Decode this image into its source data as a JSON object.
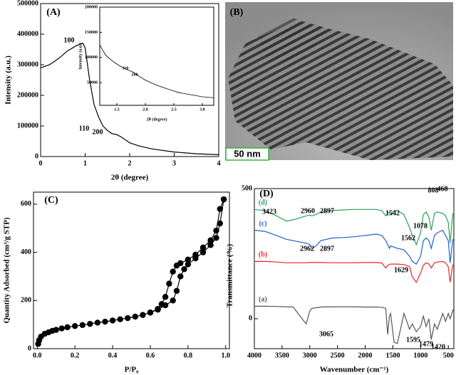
{
  "chart_data": [
    {
      "type": "line",
      "panel_label": "(A)",
      "x_label": "2θ (degree)",
      "y_label": "Intensity (a.u.)",
      "color": "#000000",
      "x": [
        0,
        0.2,
        0.4,
        0.6,
        0.8,
        0.9,
        0.95,
        1.0,
        1.1,
        1.2,
        1.3,
        1.4,
        1.5,
        1.6,
        1.7,
        1.8,
        1.9,
        2.0,
        2.2,
        2.5,
        3.0,
        3.5,
        4.0
      ],
      "values": [
        290000,
        300000,
        320000,
        345000,
        362000,
        368000,
        370000,
        355000,
        250000,
        170000,
        130000,
        100000,
        85000,
        75000,
        72000,
        65000,
        55000,
        45000,
        35000,
        25000,
        15000,
        9000,
        6000
      ],
      "xlim": [
        0,
        4
      ],
      "ylim": [
        0,
        500000
      ],
      "xticks": [
        0,
        1,
        2,
        3,
        4
      ],
      "yticks": [
        0,
        100000,
        200000,
        300000,
        400000,
        500000
      ],
      "annotations": [
        "100",
        "110",
        "200"
      ]
    },
    {
      "type": "line",
      "x_label": "2θ (degree)",
      "y_label": "Intensity (a.u.)",
      "color": "#000000",
      "x": [
        1.2,
        1.3,
        1.4,
        1.5,
        1.6,
        1.7,
        1.8,
        1.9,
        2.0,
        2.2,
        2.4,
        2.6,
        2.8,
        3.0,
        3.2
      ],
      "values": [
        125000,
        105000,
        95000,
        87000,
        80000,
        75000,
        70000,
        62000,
        55000,
        45000,
        37000,
        30000,
        26000,
        22000,
        20000
      ],
      "xlim": [
        1.2,
        3.2
      ],
      "ylim": [
        5000,
        200000
      ],
      "xticks": [
        1.5,
        {
          "value": 2,
          "label": "2.0"
        },
        2.5,
        {
          "value": 3,
          "label": "3.0"
        }
      ],
      "yticks": [
        50000,
        100000,
        150000,
        200000
      ],
      "annotations": [
        "110",
        "200"
      ]
    },
    {
      "type": "image",
      "panel_label": "(B)",
      "scale_bar": "50 nm"
    },
    {
      "type": "line",
      "panel_label": "(C)",
      "x_label": "P/P₀",
      "y_label": "Quantity Adsorbed (cm³/g STP)",
      "xlim": [
        -0.02,
        1.02
      ],
      "ylim": [
        0,
        650
      ],
      "xticks": [
        {
          "value": 0,
          "label": "0.0"
        },
        0.2,
        0.4,
        0.6,
        0.8,
        {
          "value": 1,
          "label": "1.0"
        }
      ],
      "yticks": [
        0,
        200,
        400,
        600
      ],
      "series": [
        {
          "color": "#000000",
          "x": [
            0.005,
            0.01,
            0.02,
            0.04,
            0.06,
            0.08,
            0.1,
            0.13,
            0.16,
            0.2,
            0.24,
            0.28,
            0.32,
            0.36,
            0.4,
            0.44,
            0.48,
            0.52,
            0.56,
            0.6,
            0.64,
            0.68,
            0.72,
            0.74,
            0.76,
            0.78,
            0.8,
            0.84,
            0.88,
            0.92,
            0.95,
            0.97,
            0.99
          ],
          "values": [
            20,
            35,
            50,
            62,
            68,
            74,
            78,
            84,
            89,
            94,
            98,
            103,
            108,
            112,
            117,
            122,
            127,
            133,
            140,
            150,
            162,
            180,
            200,
            240,
            300,
            330,
            350,
            375,
            400,
            430,
            460,
            520,
            620
          ]
        },
        {
          "color": "#000000",
          "x": [
            0.99,
            0.97,
            0.95,
            0.92,
            0.88,
            0.84,
            0.8,
            0.76,
            0.74,
            0.72,
            0.7,
            0.68,
            0.66,
            0.64,
            0.6
          ],
          "values": [
            620,
            580,
            490,
            450,
            420,
            390,
            370,
            355,
            345,
            320,
            270,
            215,
            185,
            165,
            150
          ]
        }
      ]
    },
    {
      "type": "line",
      "panel_label": "(D)",
      "x_label": "Wavenumber (cm⁻¹)",
      "y_label": "Transmittance (%)",
      "xlim": [
        4000,
        400
      ],
      "ylim": [
        -115,
        500
      ],
      "xticks": [
        4000,
        3500,
        3000,
        2500,
        2000,
        1500,
        1000,
        500
      ],
      "yticks": [
        0,
        500
      ],
      "x": [
        4000,
        3800,
        3600,
        3423,
        3300,
        3065,
        3000,
        2962,
        2897,
        2800,
        2600,
        2400,
        2200,
        2000,
        1800,
        1700,
        1629,
        1595,
        1562,
        1542,
        1479,
        1420,
        1300,
        1200,
        1150,
        1078,
        1000,
        950,
        900,
        850,
        808,
        750,
        700,
        600,
        550,
        500,
        468,
        420,
        400
      ],
      "series": [
        {
          "name": "(a)",
          "color": "#555555",
          "values": [
            48,
            48,
            47,
            46,
            45,
            -20,
            30,
            40,
            42,
            45,
            46,
            46,
            46,
            45,
            45,
            44,
            40,
            -60,
            10,
            20,
            -90,
            -95,
            20,
            -40,
            -20,
            -50,
            -30,
            10,
            -30,
            0,
            -80,
            -20,
            -40,
            20,
            -10,
            20,
            0,
            30,
            40
          ]
        },
        {
          "name": "(b)",
          "color": "#e8262b",
          "values": [
            220,
            220,
            218,
            215,
            215,
            215,
            216,
            216,
            216,
            216,
            215,
            215,
            215,
            216,
            216,
            214,
            195,
            205,
            208,
            210,
            210,
            210,
            208,
            200,
            160,
            140,
            175,
            205,
            215,
            210,
            195,
            215,
            218,
            220,
            215,
            200,
            140,
            205,
            210
          ]
        },
        {
          "name": "(c)",
          "color": "#1f5fd0",
          "values": [
            340,
            335,
            320,
            305,
            300,
            290,
            285,
            270,
            278,
            300,
            310,
            312,
            315,
            320,
            325,
            320,
            300,
            285,
            270,
            280,
            275,
            270,
            265,
            240,
            220,
            210,
            240,
            300,
            310,
            300,
            270,
            320,
            330,
            340,
            320,
            300,
            215,
            300,
            310
          ]
        },
        {
          "name": "(d)",
          "color": "#2ca05a",
          "values": [
            420,
            415,
            395,
            375,
            380,
            395,
            398,
            395,
            400,
            410,
            415,
            418,
            420,
            420,
            420,
            415,
            395,
            405,
            410,
            400,
            415,
            415,
            400,
            350,
            320,
            285,
            330,
            400,
            410,
            390,
            340,
            405,
            410,
            405,
            395,
            370,
            290,
            400,
            410
          ]
        }
      ],
      "annotations": [
        "3423",
        "2960",
        "2897",
        "1542",
        "808",
        "468",
        "1078",
        "2962",
        "2897",
        "1562",
        "1629",
        "3065",
        "1595",
        "1479",
        "1420"
      ]
    }
  ]
}
